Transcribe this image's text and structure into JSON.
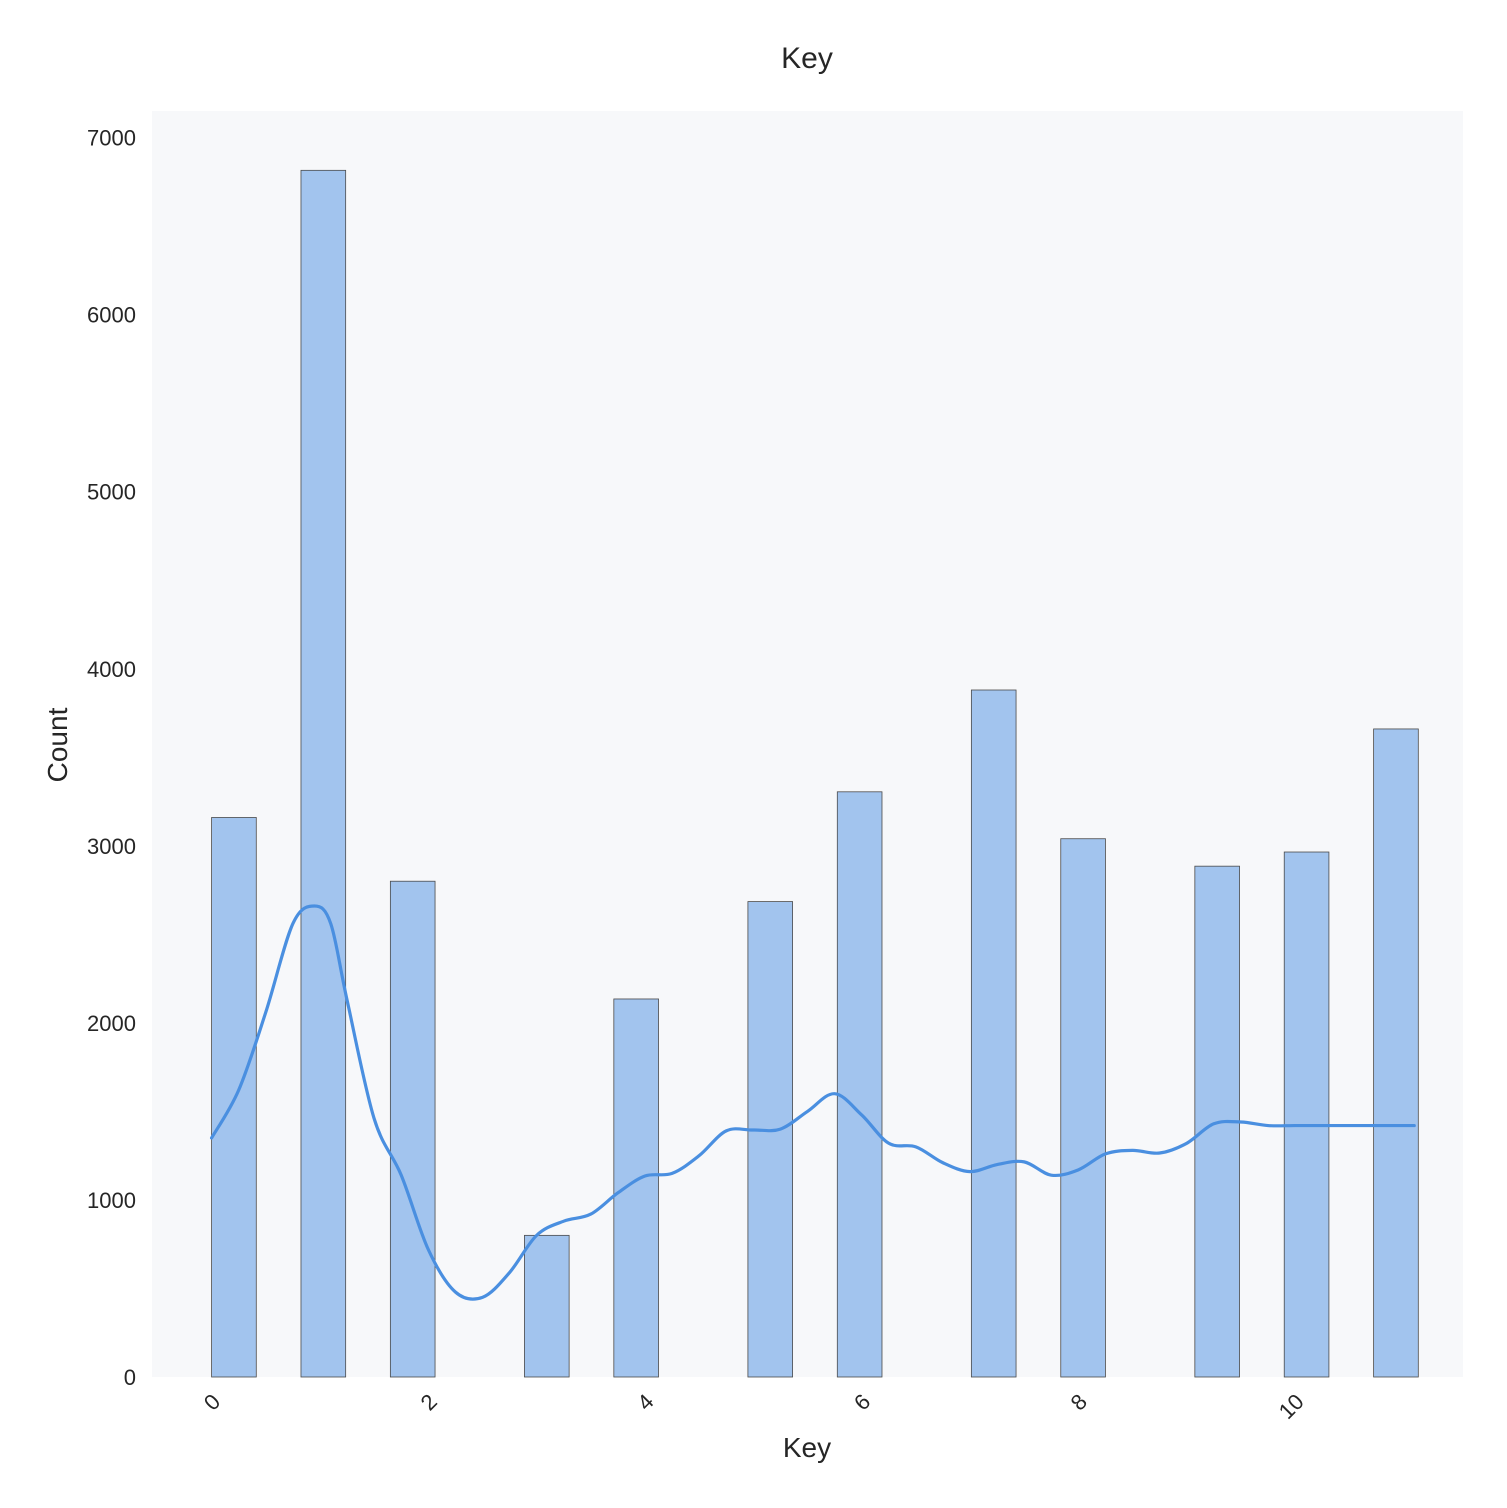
{
  "chart_data": {
    "type": "bar",
    "title": "Key",
    "xlabel": "Key",
    "ylabel": "Count",
    "xlim": [
      -0.55,
      11.55
    ],
    "ylim": [
      0,
      7150
    ],
    "x_ticks": [
      0,
      2,
      4,
      6,
      8,
      10
    ],
    "x_tick_labels": [
      "0",
      "2",
      "4",
      "6",
      "8",
      "10"
    ],
    "y_ticks": [
      0,
      1000,
      2000,
      3000,
      4000,
      5000,
      6000,
      7000
    ],
    "y_tick_labels": [
      "0",
      "1000",
      "2000",
      "3000",
      "4000",
      "5000",
      "6000",
      "7000"
    ],
    "bins": [
      {
        "x0": 0.0,
        "x1": 0.4125,
        "count": 3160
      },
      {
        "x0": 0.825,
        "x1": 1.2375,
        "count": 6815
      },
      {
        "x0": 1.65,
        "x1": 2.0625,
        "count": 2800
      },
      {
        "x0": 2.8875,
        "x1": 3.3,
        "count": 800
      },
      {
        "x0": 3.7125,
        "x1": 4.125,
        "count": 2135
      },
      {
        "x0": 4.95,
        "x1": 5.3625,
        "count": 2685
      },
      {
        "x0": 5.775,
        "x1": 6.1875,
        "count": 3305
      },
      {
        "x0": 7.0125,
        "x1": 7.425,
        "count": 3880
      },
      {
        "x0": 7.8375,
        "x1": 8.25,
        "count": 3040
      },
      {
        "x0": 9.075,
        "x1": 9.4875,
        "count": 2885
      },
      {
        "x0": 9.9,
        "x1": 10.3125,
        "count": 2965
      },
      {
        "x0": 10.725,
        "x1": 11.1375,
        "count": 3660
      }
    ],
    "kde": {
      "x": [
        0,
        0.25,
        0.5,
        0.75,
        0.95,
        1.1,
        1.25,
        1.5,
        1.75,
        2.0,
        2.25,
        2.5,
        2.75,
        3.0,
        3.25,
        3.5,
        3.75,
        4.0,
        4.25,
        4.5,
        4.75,
        5.0,
        5.25,
        5.5,
        5.75,
        6.0,
        6.25,
        6.5,
        6.75,
        7.0,
        7.25,
        7.5,
        7.75,
        8.0,
        8.25,
        8.5,
        8.75,
        9.0,
        9.25,
        9.5,
        9.75,
        10.0,
        10.25,
        10.5,
        10.75,
        11.0,
        11.1
      ],
      "y": [
        1350,
        1620,
        2060,
        2560,
        2660,
        2560,
        2130,
        1460,
        1140,
        720,
        480,
        450,
        590,
        800,
        880,
        920,
        1040,
        1135,
        1150,
        1250,
        1390,
        1395,
        1400,
        1500,
        1600,
        1480,
        1320,
        1300,
        1210,
        1160,
        1200,
        1215,
        1140,
        1170,
        1260,
        1280,
        1265,
        1320,
        1430,
        1440,
        1420,
        1420,
        1420,
        1420,
        1420,
        1420,
        1420
      ]
    },
    "colors": {
      "bar_fill": "#a2c4ee",
      "bar_edge": "#4a4a4a",
      "kde_line": "#4a8fe0",
      "plot_background": "#f7f8fa"
    },
    "grid": false,
    "legend": "none"
  }
}
